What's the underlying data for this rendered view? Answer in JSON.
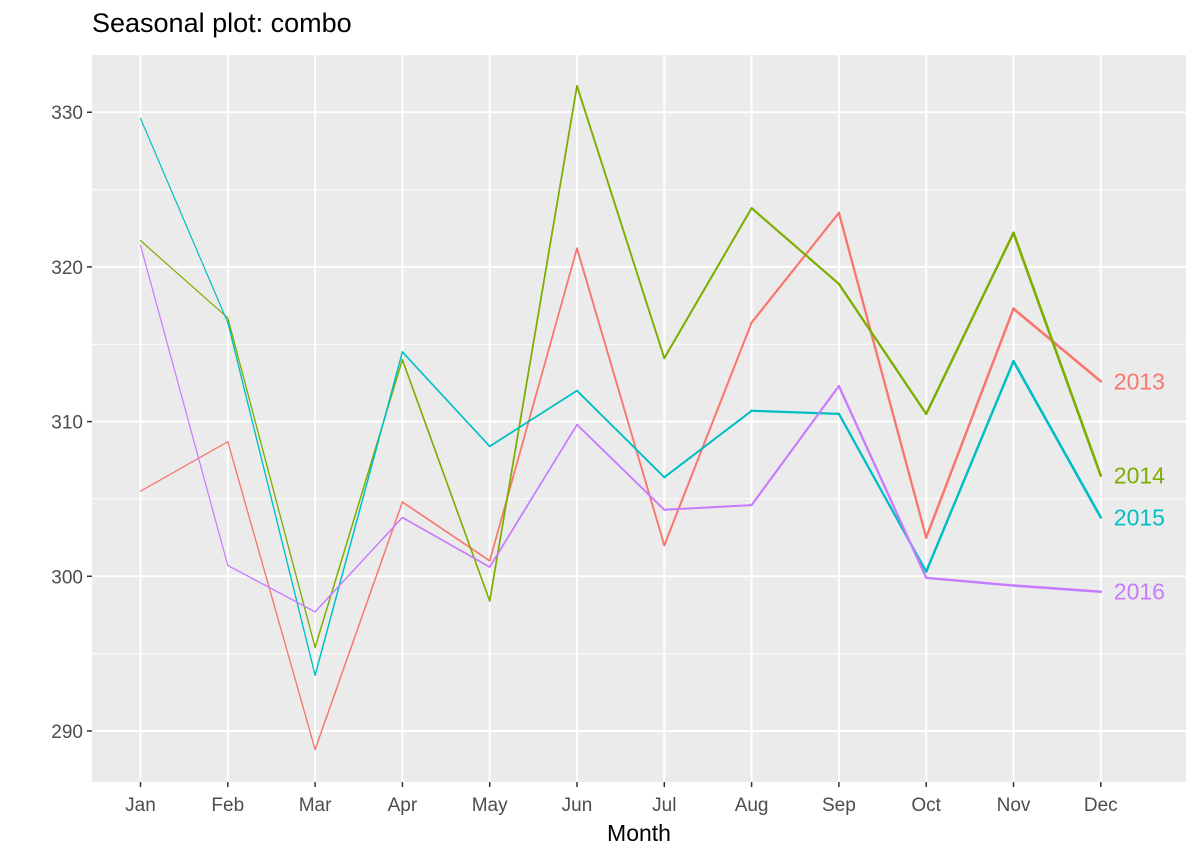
{
  "chart_data": {
    "type": "line",
    "title": "Seasonal plot: combo",
    "xlabel": "Month",
    "ylabel": "",
    "categories": [
      "Jan",
      "Feb",
      "Mar",
      "Apr",
      "May",
      "Jun",
      "Jul",
      "Aug",
      "Sep",
      "Oct",
      "Nov",
      "Dec"
    ],
    "ylim": [
      286.7,
      333.7
    ],
    "yticks": [
      290,
      300,
      310,
      320,
      330
    ],
    "grid": true,
    "legend": "none (series labels at line ends)",
    "series": [
      {
        "name": "2013",
        "color": "#F8766D",
        "values": [
          305.5,
          308.7,
          288.8,
          304.8,
          301.0,
          321.2,
          302.0,
          316.4,
          323.5,
          302.5,
          317.3,
          312.6
        ]
      },
      {
        "name": "2014",
        "color": "#7CAE00",
        "values": [
          321.7,
          316.7,
          295.4,
          314.0,
          298.4,
          331.7,
          314.1,
          323.8,
          318.9,
          310.5,
          322.2,
          306.5
        ]
      },
      {
        "name": "2015",
        "color": "#00BFC4",
        "values": [
          329.6,
          316.4,
          293.6,
          314.5,
          308.4,
          312.0,
          306.4,
          310.7,
          310.5,
          300.3,
          313.9,
          303.8
        ]
      },
      {
        "name": "2016",
        "color": "#C77CFF",
        "values": [
          321.4,
          300.7,
          297.7,
          303.8,
          300.6,
          309.8,
          304.3,
          304.6,
          312.3,
          299.9,
          299.4,
          299.0
        ]
      }
    ]
  }
}
